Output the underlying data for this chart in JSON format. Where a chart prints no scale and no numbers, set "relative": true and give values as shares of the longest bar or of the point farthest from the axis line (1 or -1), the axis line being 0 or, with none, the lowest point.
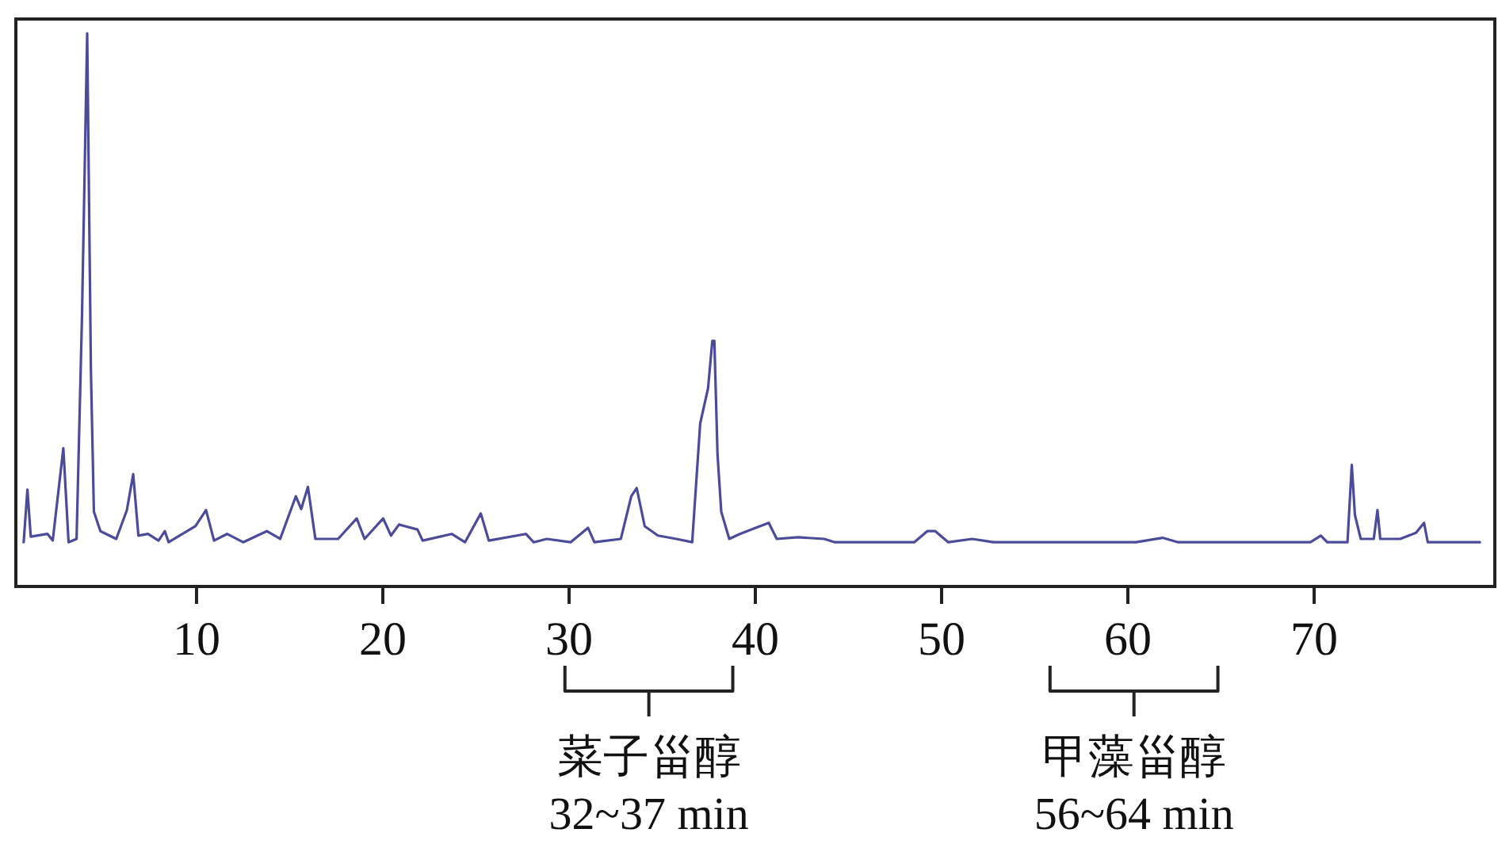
{
  "chart_data": {
    "type": "line",
    "relative": true,
    "xlim": [
      0.3,
      79.7
    ],
    "xticks": [
      10,
      20,
      30,
      40,
      50,
      60,
      70
    ],
    "grid": false,
    "series": [
      {
        "color": "#4b4b9c",
        "x": [
          0.72,
          0.92,
          1.1,
          2.0,
          2.28,
          2.85,
          3.13,
          3.56,
          3.85,
          4.13,
          4.33,
          4.49,
          4.84,
          5.69,
          6.26,
          6.6,
          6.88,
          7.39,
          7.96,
          8.3,
          8.5,
          9.94,
          10.51,
          10.94,
          11.64,
          12.5,
          13.77,
          14.49,
          15.33,
          15.62,
          15.98,
          16.38,
          17.6,
          18.6,
          19.02,
          20.02,
          20.44,
          20.87,
          21.86,
          22.14,
          23.7,
          24.41,
          25.26,
          25.69,
          27.68,
          28.1,
          28.8,
          30.08,
          31.02,
          31.36,
          32.78,
          33.34,
          33.63,
          34.06,
          34.77,
          35.76,
          36.61,
          37.04,
          37.46,
          37.69,
          37.8,
          37.97,
          38.17,
          38.6,
          39.17,
          40.02,
          40.72,
          41.15,
          42.28,
          43.7,
          44.27,
          48.53,
          49.23,
          49.66,
          50.36,
          51.64,
          52.78,
          60.44,
          61.86,
          62.7,
          69.8,
          70.36,
          70.7,
          71.79,
          72.02,
          72.19,
          72.5,
          73.2,
          73.4,
          73.55,
          74.62,
          75.47,
          75.9,
          76.1,
          78.9
        ],
        "values": [
          0.08,
          0.175,
          0.09,
          0.095,
          0.083,
          0.25,
          0.08,
          0.086,
          0.487,
          1.0,
          0.39,
          0.135,
          0.1,
          0.086,
          0.138,
          0.203,
          0.092,
          0.095,
          0.083,
          0.1,
          0.08,
          0.109,
          0.138,
          0.083,
          0.095,
          0.08,
          0.1,
          0.086,
          0.163,
          0.14,
          0.18,
          0.086,
          0.086,
          0.123,
          0.086,
          0.123,
          0.092,
          0.112,
          0.103,
          0.083,
          0.095,
          0.08,
          0.132,
          0.083,
          0.095,
          0.08,
          0.086,
          0.08,
          0.106,
          0.08,
          0.086,
          0.163,
          0.178,
          0.109,
          0.092,
          0.086,
          0.08,
          0.295,
          0.358,
          0.444,
          0.444,
          0.238,
          0.135,
          0.086,
          0.095,
          0.106,
          0.115,
          0.086,
          0.089,
          0.086,
          0.08,
          0.08,
          0.1,
          0.1,
          0.08,
          0.086,
          0.08,
          0.08,
          0.088,
          0.08,
          0.08,
          0.092,
          0.08,
          0.08,
          0.22,
          0.129,
          0.086,
          0.086,
          0.138,
          0.086,
          0.086,
          0.097,
          0.115,
          0.08,
          0.08
        ]
      }
    ],
    "annotations": [
      "菜子甾醇\n32~37 min",
      "甲藻甾醇\n56~64 min"
    ]
  }
}
